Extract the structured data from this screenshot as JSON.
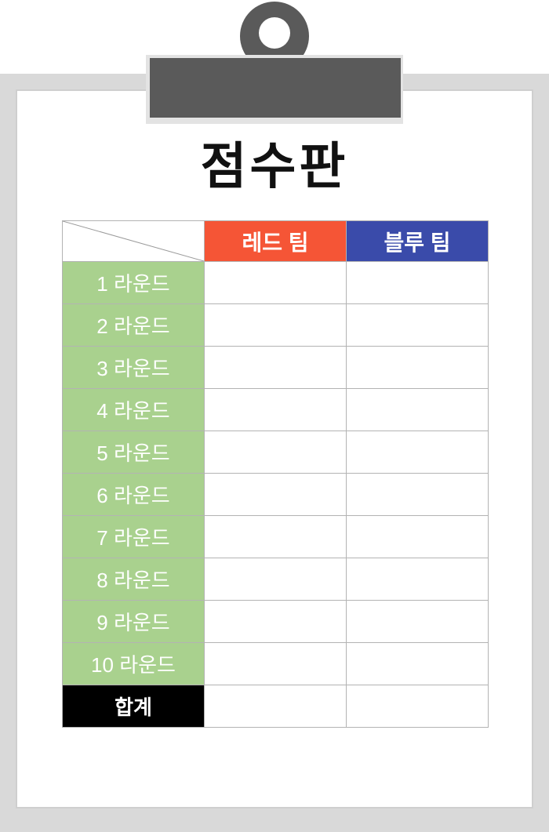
{
  "title": "점수판",
  "headers": {
    "red_team": "레드 팀",
    "blue_team": "블루 팀"
  },
  "rounds": [
    {
      "label": "1 라운드",
      "red": "",
      "blue": ""
    },
    {
      "label": "2 라운드",
      "red": "",
      "blue": ""
    },
    {
      "label": "3 라운드",
      "red": "",
      "blue": ""
    },
    {
      "label": "4 라운드",
      "red": "",
      "blue": ""
    },
    {
      "label": "5 라운드",
      "red": "",
      "blue": ""
    },
    {
      "label": "6 라운드",
      "red": "",
      "blue": ""
    },
    {
      "label": "7 라운드",
      "red": "",
      "blue": ""
    },
    {
      "label": "8 라운드",
      "red": "",
      "blue": ""
    },
    {
      "label": "9 라운드",
      "red": "",
      "blue": ""
    },
    {
      "label": "10 라운드",
      "red": "",
      "blue": ""
    }
  ],
  "total": {
    "label": "합계",
    "red": "",
    "blue": ""
  },
  "colors": {
    "red_team": "#f55536",
    "blue_team": "#3a4baa",
    "round_label": "#a9d18e",
    "total_label": "#000000",
    "clipboard": "#5a5a5a",
    "board": "#d9d9d9"
  }
}
